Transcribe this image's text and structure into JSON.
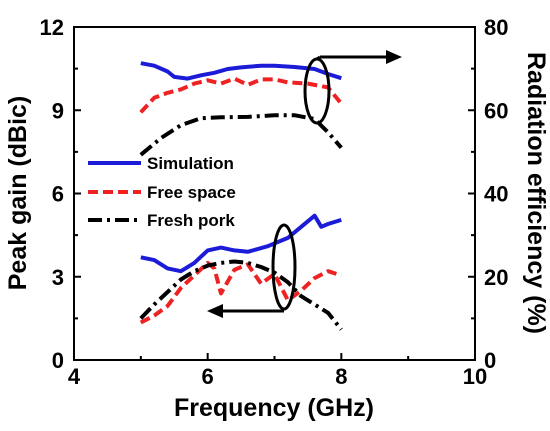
{
  "chart_data": {
    "type": "line",
    "xlabel": "Frequency (GHz)",
    "ylabel_left": "Peak gain (dBic)",
    "ylabel_right": "Radiation efficiency (%)",
    "xlim": [
      4,
      10
    ],
    "ylim_left": [
      0,
      12
    ],
    "ylim_right": [
      0,
      80
    ],
    "xticks": [
      "4",
      "6",
      "8",
      "10"
    ],
    "yticks_left": [
      "0",
      "3",
      "6",
      "9",
      "12"
    ],
    "yticks_right": [
      "0",
      "20",
      "40",
      "60",
      "80"
    ],
    "grid": false,
    "legend_placement": "center-left",
    "colors": {
      "simulation": "#1c1cd8",
      "free_space": "#ee2222",
      "fresh_pork": "#000000"
    },
    "series": [
      {
        "name": "Simulation",
        "axis": "right",
        "style": "solid",
        "color": "#1c1cd8",
        "x": [
          5.0,
          5.2,
          5.4,
          5.5,
          5.7,
          5.9,
          6.1,
          6.3,
          6.5,
          6.8,
          7.0,
          7.3,
          7.6,
          7.8,
          8.0
        ],
        "y": [
          71.3,
          70.7,
          69.3,
          68.0,
          67.6,
          68.4,
          69.0,
          69.9,
          70.3,
          70.7,
          70.7,
          70.4,
          69.9,
          68.7,
          67.7
        ]
      },
      {
        "name": "Free space",
        "axis": "right",
        "style": "dashed",
        "color": "#ee2222",
        "x": [
          5.0,
          5.2,
          5.4,
          5.6,
          5.8,
          6.0,
          6.2,
          6.4,
          6.6,
          6.8,
          7.0,
          7.2,
          7.5,
          7.8,
          8.0
        ],
        "y": [
          59.5,
          63.0,
          64.2,
          65.0,
          66.4,
          67.2,
          66.4,
          67.6,
          66.1,
          67.4,
          67.4,
          66.7,
          66.4,
          65.5,
          61.6
        ]
      },
      {
        "name": "Fresh pork",
        "axis": "right",
        "style": "dashdot",
        "color": "#000000",
        "x": [
          5.0,
          5.3,
          5.6,
          5.9,
          6.2,
          6.6,
          7.0,
          7.3,
          7.6,
          7.8,
          8.0
        ],
        "y": [
          49.3,
          53.3,
          56.4,
          58.1,
          58.3,
          58.4,
          58.8,
          58.8,
          57.9,
          54.7,
          51.0
        ]
      },
      {
        "name": "Simulation",
        "axis": "left",
        "style": "solid",
        "color": "#1c1cd8",
        "x": [
          5.0,
          5.2,
          5.4,
          5.6,
          5.8,
          6.0,
          6.2,
          6.4,
          6.6,
          6.9,
          7.2,
          7.4,
          7.6,
          7.7,
          7.8,
          8.0
        ],
        "y": [
          3.7,
          3.6,
          3.3,
          3.2,
          3.5,
          3.95,
          4.05,
          3.95,
          3.9,
          4.1,
          4.4,
          4.8,
          5.2,
          4.8,
          4.9,
          5.05
        ]
      },
      {
        "name": "Free space",
        "axis": "left",
        "style": "dashed",
        "color": "#ee2222",
        "x": [
          5.0,
          5.2,
          5.4,
          5.6,
          5.8,
          6.0,
          6.1,
          6.2,
          6.4,
          6.6,
          6.8,
          7.0,
          7.2,
          7.4,
          7.6,
          7.8,
          8.0
        ],
        "y": [
          1.35,
          1.6,
          1.95,
          2.6,
          3.05,
          3.5,
          3.3,
          2.4,
          3.25,
          3.45,
          2.75,
          3.1,
          2.15,
          2.5,
          2.95,
          3.2,
          3.05
        ]
      },
      {
        "name": "Fresh pork",
        "axis": "left",
        "style": "dashdot",
        "color": "#000000",
        "x": [
          5.0,
          5.2,
          5.4,
          5.6,
          5.8,
          6.0,
          6.2,
          6.4,
          6.6,
          6.8,
          7.0,
          7.2,
          7.4,
          7.6,
          7.8,
          8.0
        ],
        "y": [
          1.5,
          2.0,
          2.45,
          2.9,
          3.2,
          3.4,
          3.5,
          3.55,
          3.5,
          3.35,
          3.15,
          2.8,
          2.3,
          2.0,
          1.7,
          1.1
        ]
      }
    ]
  }
}
